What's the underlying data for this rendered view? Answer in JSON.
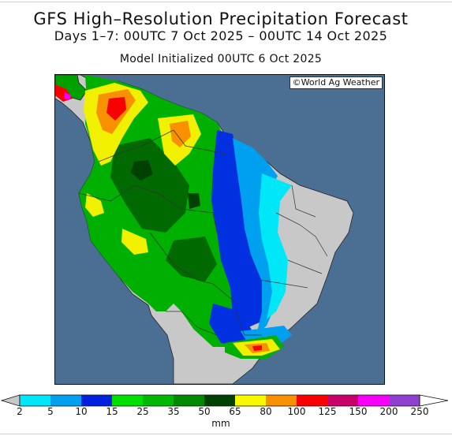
{
  "header": {
    "title": "GFS High–Resolution Precipitation Forecast",
    "subtitle": "Days 1–7: 00UTC 7 Oct 2025 – 00UTC 14 Oct 2025",
    "init": "Model Initialized 00UTC 6 Oct 2025"
  },
  "map": {
    "region": "South America",
    "credit": "©World Ag Weather",
    "ocean_color": "#4a6f93",
    "dry_land_color": "#c8c8c8"
  },
  "legend": {
    "units": "mm",
    "ticks": [
      "2",
      "5",
      "10",
      "15",
      "25",
      "35",
      "50",
      "65",
      "80",
      "100",
      "125",
      "150",
      "200",
      "250"
    ],
    "colors": [
      "#00e8f8",
      "#00a0f0",
      "#0020e0",
      "#00e000",
      "#00b800",
      "#008800",
      "#004000",
      "#f8f800",
      "#f89000",
      "#f80000",
      "#c8006a",
      "#f800f8",
      "#9040d0"
    ]
  }
}
